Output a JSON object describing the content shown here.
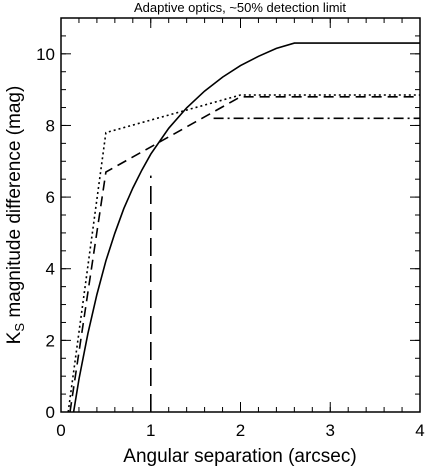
{
  "chart_data": {
    "type": "line",
    "title": "Adaptive optics, ~50% detection limit",
    "xlabel": "Angular separation (arcsec)",
    "ylabel": {
      "base": "K",
      "subscript": "S",
      "rest": " magnitude difference (mag)"
    },
    "xlim": [
      0,
      4
    ],
    "ylim": [
      0,
      11
    ],
    "xticks": [
      "0",
      "1",
      "2",
      "3",
      "4"
    ],
    "yticks": [
      "0",
      "2",
      "4",
      "6",
      "8",
      "10"
    ],
    "grid": false,
    "series": [
      {
        "style": "solid",
        "x": [
          0.14,
          0.2,
          0.3,
          0.4,
          0.5,
          0.6,
          0.7,
          0.8,
          0.9,
          1.0,
          1.2,
          1.4,
          1.6,
          1.8,
          2.0,
          2.2,
          2.4,
          2.6,
          3.0,
          3.5,
          4.0
        ],
        "y": [
          0.0,
          0.92,
          2.19,
          3.28,
          4.22,
          4.99,
          5.68,
          6.25,
          6.75,
          7.2,
          7.92,
          8.49,
          8.96,
          9.35,
          9.67,
          9.93,
          10.15,
          10.3,
          10.3,
          10.3,
          10.3
        ]
      },
      {
        "style": "dashed",
        "x": [
          0.1,
          0.5,
          2.0,
          4.0
        ],
        "y": [
          0.0,
          6.7,
          8.8,
          8.8
        ]
      },
      {
        "style": "dotted",
        "x": [
          0.08,
          0.5,
          2.0,
          4.0
        ],
        "y": [
          0.0,
          7.8,
          8.85,
          8.85
        ]
      },
      {
        "style": "dash-dot",
        "x": [
          1.7,
          4.0
        ],
        "y": [
          8.2,
          8.2
        ]
      },
      {
        "style": "long-dash",
        "x": [
          1.0,
          1.0
        ],
        "y": [
          0.0,
          6.6
        ]
      }
    ]
  }
}
